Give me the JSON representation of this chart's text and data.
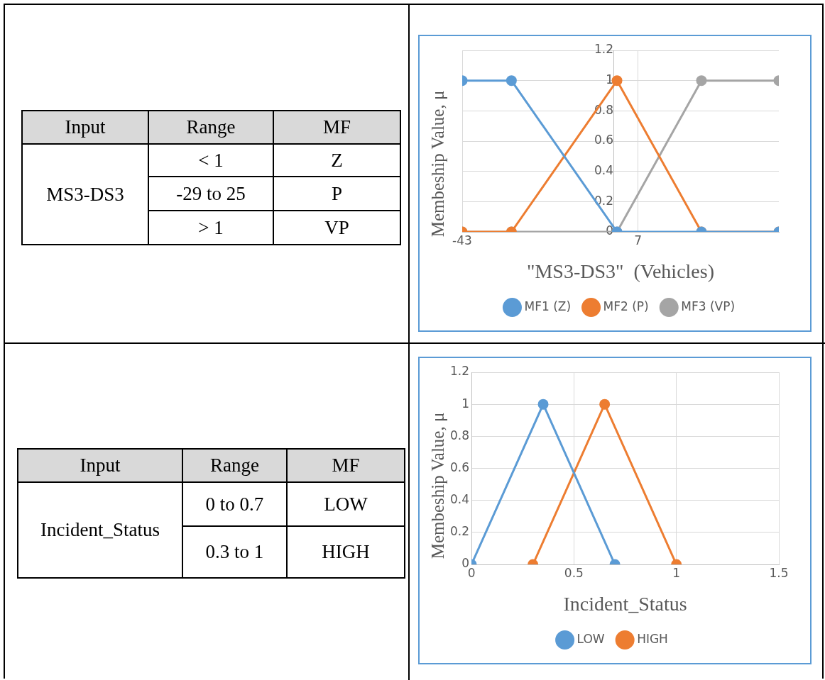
{
  "chart_data": [
    {
      "type": "other",
      "annotations": [
        "Input",
        "Range",
        "MF",
        "MS3-DS3",
        "< 1",
        "Z",
        "-29 to 25",
        "P",
        "> 1",
        "VP"
      ]
    },
    {
      "type": "line",
      "xlabel": "\"MS3-DS3\"  (Vehicles)",
      "ylabel": "Membeship  Value,  μ",
      "xlim": [
        -43,
        47
      ],
      "xticks": [
        {
          "value": -43,
          "label": "-43"
        },
        7
      ],
      "ylim": [
        0,
        1.2
      ],
      "yticks": [
        0,
        0.2,
        0.4,
        0.6,
        0.8,
        1,
        1.2
      ],
      "grid": true,
      "legend": "bottom",
      "marker": "circle",
      "series": [
        {
          "name": "MF1 (Z)",
          "color": "#5b9bd5",
          "x": [
            -43,
            -29,
            1,
            25,
            47
          ],
          "values": [
            1,
            1,
            0,
            0,
            0
          ]
        },
        {
          "name": "MF2 (P)",
          "color": "#ed7d31",
          "x": [
            -43,
            -29,
            1,
            25,
            47
          ],
          "values": [
            0,
            0,
            1,
            0,
            0
          ]
        },
        {
          "name": "MF3 (VP)",
          "color": "#a5a5a5",
          "x": [
            -43,
            -29,
            1,
            25,
            47
          ],
          "values": [
            0,
            0,
            0,
            1,
            1
          ]
        }
      ]
    },
    {
      "type": "other",
      "annotations": [
        "Input",
        "Range",
        "MF",
        "Incident_Status",
        "0 to 0.7",
        "LOW",
        "0.3 to 1",
        "HIGH"
      ]
    },
    {
      "type": "line",
      "xlabel": "Incident_Status",
      "ylabel": "Membeship  Value,  μ",
      "xlim": [
        0,
        1.5
      ],
      "xticks": [
        0,
        0.5,
        1,
        1.5
      ],
      "ylim": [
        0,
        1.2
      ],
      "yticks": [
        0,
        0.2,
        0.4,
        0.6,
        0.8,
        1,
        1.2
      ],
      "grid": true,
      "legend": "bottom",
      "marker": "circle",
      "series": [
        {
          "name": "LOW",
          "color": "#5b9bd5",
          "x": [
            0,
            0.35,
            0.7
          ],
          "values": [
            0,
            1,
            0
          ]
        },
        {
          "name": "HIGH",
          "color": "#ed7d31",
          "x": [
            0.3,
            0.65,
            1
          ],
          "values": [
            0,
            1,
            0
          ]
        }
      ]
    }
  ]
}
